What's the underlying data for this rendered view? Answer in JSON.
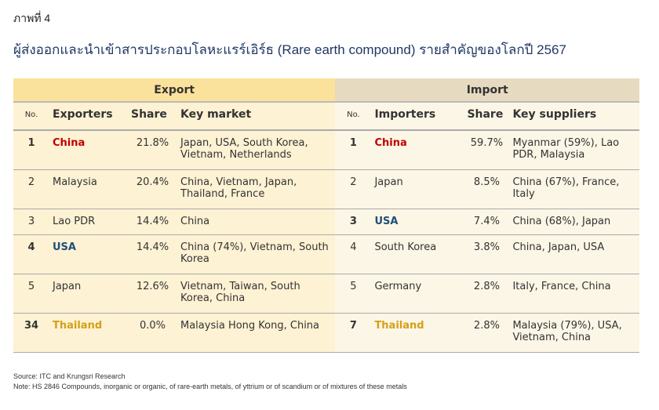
{
  "figure_label": "ภาพที่ 4",
  "title": "ผู้ส่งออกและนำเข้าสารประกอบโลหะแรร์เอิร์ธ (Rare earth compound) รายสำคัญของโลกปี 2567",
  "export": {
    "label": "Export",
    "headers": {
      "no": "No.",
      "name": "Exporters",
      "share": "Share",
      "key": "Key market"
    }
  },
  "import": {
    "label": "Import",
    "headers": {
      "no": "No.",
      "name": "Importers",
      "share": "Share",
      "key": "Key suppliers"
    }
  },
  "colors": {
    "china": "#c00000",
    "usa": "#1f4e79",
    "thailand": "#d4a017"
  },
  "rows": [
    {
      "ex": {
        "no": "1",
        "name": "China",
        "share": "21.8%",
        "key": "Japan, USA, South Korea, Vietnam, Netherlands",
        "style": "red"
      },
      "im": {
        "no": "1",
        "name": "China",
        "share": "59.7%",
        "key": "Myanmar (59%), Lao PDR, Malaysia",
        "style": "red"
      }
    },
    {
      "ex": {
        "no": "2",
        "name": "Malaysia",
        "share": "20.4%",
        "key": "China, Vietnam, Japan, Thailand, France",
        "style": ""
      },
      "im": {
        "no": "2",
        "name": "Japan",
        "share": "8.5%",
        "key": "China (67%), France, Italy",
        "style": ""
      }
    },
    {
      "ex": {
        "no": "3",
        "name": "Lao PDR",
        "share": "14.4%",
        "key": "China",
        "style": ""
      },
      "im": {
        "no": "3",
        "name": "USA",
        "share": "7.4%",
        "key": "China (68%), Japan",
        "style": "blue"
      }
    },
    {
      "ex": {
        "no": "4",
        "name": "USA",
        "share": "14.4%",
        "key": "China (74%), Vietnam, South Korea",
        "style": "blue"
      },
      "im": {
        "no": "4",
        "name": "South Korea",
        "share": "3.8%",
        "key": "China, Japan, USA",
        "style": ""
      }
    },
    {
      "ex": {
        "no": "5",
        "name": "Japan",
        "share": "12.6%",
        "key": "Vietnam, Taiwan, South Korea, China",
        "style": ""
      },
      "im": {
        "no": "5",
        "name": "Germany",
        "share": "2.8%",
        "key": "Italy, France, China",
        "style": ""
      }
    },
    {
      "ex": {
        "no": "34",
        "name": "Thailand",
        "share": "0.0%",
        "key": "Malaysia Hong Kong, China",
        "style": "gold"
      },
      "im": {
        "no": "7",
        "name": "Thailand",
        "share": "2.8%",
        "key": "Malaysia (79%), USA, Vietnam, China",
        "style": "gold"
      }
    }
  ],
  "source": "Source: ITC and Krungsri Research",
  "note": "Note: HS 2846 Compounds, inorganic or organic, of rare-earth metals, of yttrium or of scandium or of mixtures of these metals"
}
